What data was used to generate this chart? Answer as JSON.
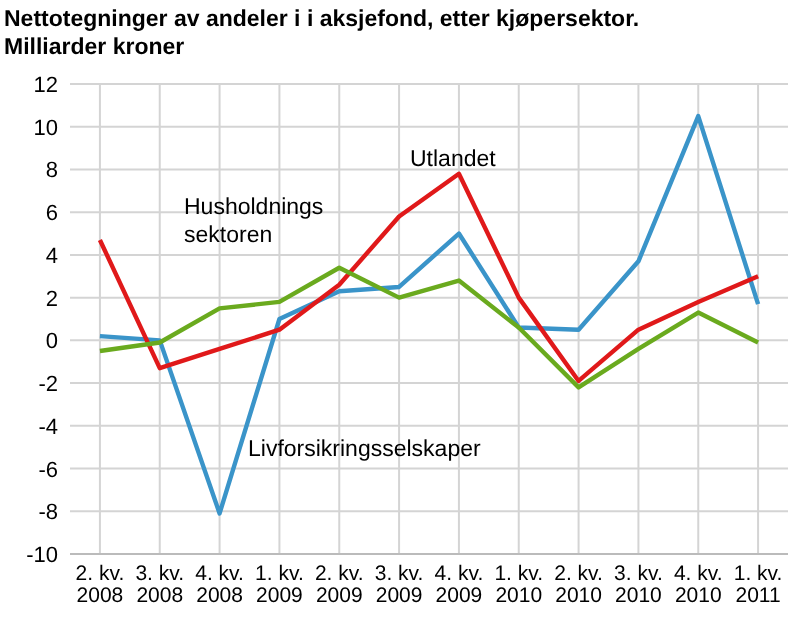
{
  "chart_data": {
    "type": "line",
    "title": "Nettotegninger av andeler i i aksjefond, etter kjøpersektor.\nMilliarder kroner",
    "categories": [
      "2. kv. 2008",
      "3. kv. 2008",
      "4. kv. 2008",
      "1. kv. 2009",
      "2. kv. 2009",
      "3. kv. 2009",
      "4. kv. 2009",
      "1. kv. 2010",
      "2. kv. 2010",
      "3. kv. 2010",
      "4. kv. 2010",
      "1. kv. 2011"
    ],
    "series": [
      {
        "name": "Livforsikringsselskaper",
        "color": "#3a94c9",
        "values": [
          0.2,
          0.0,
          -8.1,
          1.0,
          2.3,
          2.5,
          5.0,
          0.6,
          0.5,
          3.7,
          10.5,
          1.7
        ]
      },
      {
        "name": "Utlandet",
        "color": "#e0191a",
        "values": [
          4.7,
          -1.3,
          -0.4,
          0.5,
          2.6,
          5.8,
          7.8,
          2.0,
          -1.9,
          0.5,
          1.8,
          3.0
        ]
      },
      {
        "name": "Husholdnings sektoren",
        "color": "#6aaa1e",
        "values": [
          -0.5,
          -0.1,
          1.5,
          1.8,
          3.4,
          2.0,
          2.8,
          0.6,
          -2.2,
          -0.4,
          1.3,
          -0.1
        ]
      }
    ],
    "ylim": [
      -10,
      12
    ],
    "yticks": [
      -10,
      -8,
      -6,
      -4,
      -2,
      0,
      2,
      4,
      6,
      8,
      10,
      12
    ],
    "grid": true,
    "marker": "none",
    "line_style": "solid"
  }
}
